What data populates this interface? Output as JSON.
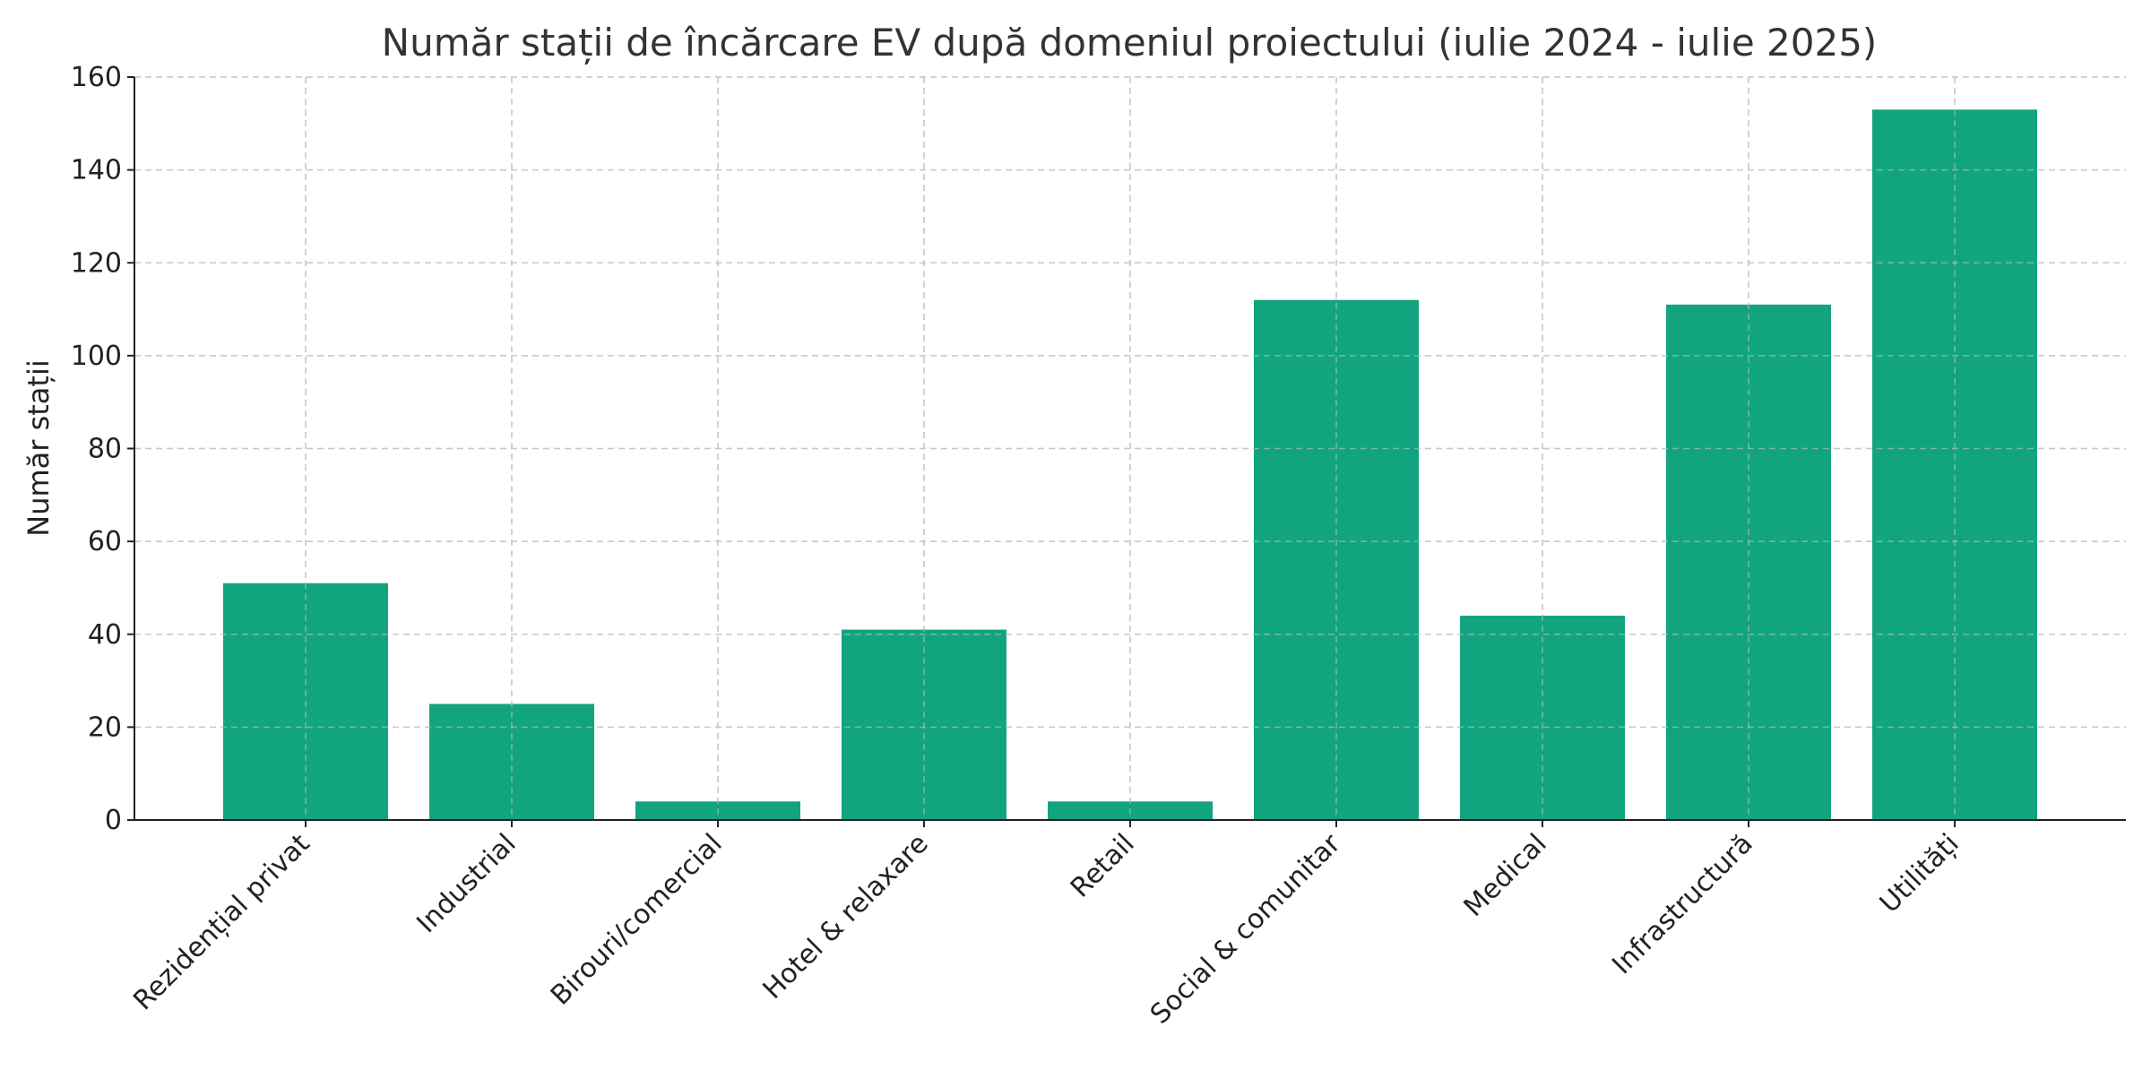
{
  "chart_data": {
    "type": "bar",
    "title": "Număr stații de încărcare EV după domeniul proiectului (iulie 2024 - iulie 2025)",
    "xlabel": "",
    "ylabel": "Număr stații",
    "categories": [
      "Rezidențial privat",
      "Industrial",
      "Birouri/comercial",
      "Hotel & relaxare",
      "Retail",
      "Social & comunitar",
      "Medical",
      "Infrastructură",
      "Utilități"
    ],
    "values": [
      51,
      25,
      4,
      41,
      4,
      112,
      44,
      111,
      153
    ],
    "ylim": [
      0,
      160
    ],
    "yticks": [
      0,
      20,
      40,
      60,
      80,
      100,
      120,
      140,
      160
    ],
    "grid": true,
    "bar_color": "#12a47f"
  }
}
